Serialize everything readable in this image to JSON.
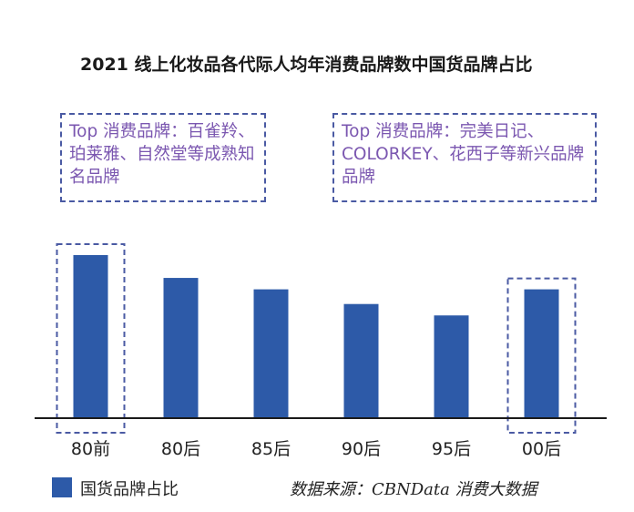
{
  "chart_data": {
    "type": "bar",
    "title": "2021 线上化妆品各代际人均年消费品牌数中国货品牌占比",
    "categories": [
      "80前",
      "80后",
      "85后",
      "90后",
      "95后",
      "00后"
    ],
    "series": [
      {
        "name": "国货品牌占比",
        "values": [
          100,
          86,
          79,
          70,
          63,
          79
        ]
      }
    ],
    "ylim": [
      0,
      100
    ],
    "grid": false,
    "legend": "bottom-left",
    "bar_color": "#2d5aa8",
    "highlight_color": "#4a5aa3",
    "annotation_color": "#7b57b0",
    "highlighted_categories": [
      "80前",
      "00后"
    ],
    "annotations": [
      {
        "target": "80前",
        "text": "Top 消费品牌：百雀羚、珀莱雅、自然堂等成熟知名品牌"
      },
      {
        "target": "00后",
        "text": "Top 消费品牌：完美日记、COLORKEY、花西子等新兴品牌品牌"
      }
    ]
  },
  "source": "数据来源：CBNData 消费大数据"
}
